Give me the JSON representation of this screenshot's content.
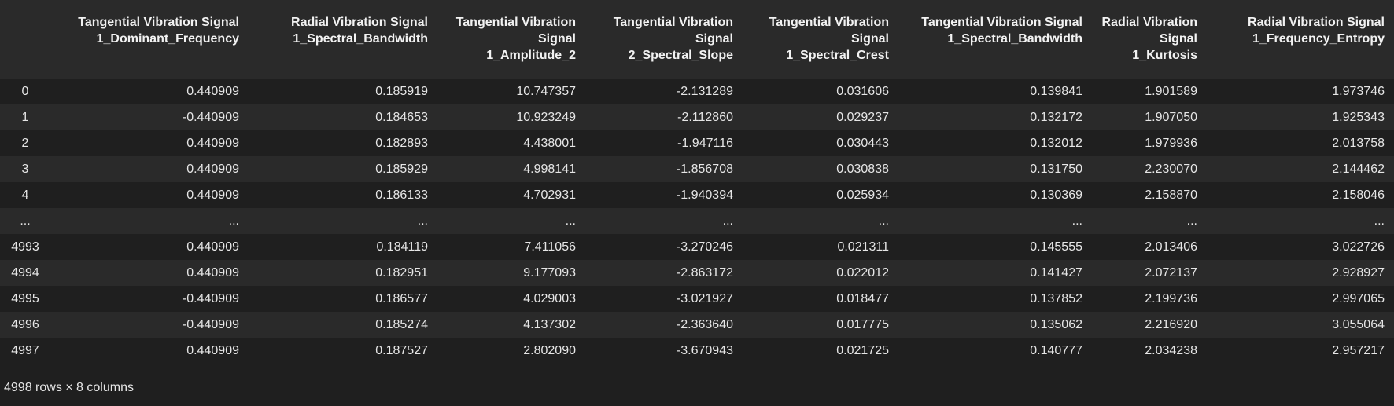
{
  "table": {
    "columns": [
      "Tangential Vibration Signal 1_Dominant_Frequency",
      "Radial Vibration Signal 1_Spectral_Bandwidth",
      "Tangential Vibration Signal 1_Amplitude_2",
      "Tangential Vibration Signal 2_Spectral_Slope",
      "Tangential Vibration Signal 1_Spectral_Crest",
      "Tangential Vibration Signal 1_Spectral_Bandwidth",
      "Radial Vibration Signal 1_Kurtosis",
      "Radial Vibration Signal 1_Frequency_Entropy"
    ],
    "rows": [
      {
        "index": "0",
        "cells": [
          "0.440909",
          "0.185919",
          "10.747357",
          "-2.131289",
          "0.031606",
          "0.139841",
          "1.901589",
          "1.973746"
        ]
      },
      {
        "index": "1",
        "cells": [
          "-0.440909",
          "0.184653",
          "10.923249",
          "-2.112860",
          "0.029237",
          "0.132172",
          "1.907050",
          "1.925343"
        ]
      },
      {
        "index": "2",
        "cells": [
          "0.440909",
          "0.182893",
          "4.438001",
          "-1.947116",
          "0.030443",
          "0.132012",
          "1.979936",
          "2.013758"
        ]
      },
      {
        "index": "3",
        "cells": [
          "0.440909",
          "0.185929",
          "4.998141",
          "-1.856708",
          "0.030838",
          "0.131750",
          "2.230070",
          "2.144462"
        ]
      },
      {
        "index": "4",
        "cells": [
          "0.440909",
          "0.186133",
          "4.702931",
          "-1.940394",
          "0.025934",
          "0.130369",
          "2.158870",
          "2.158046"
        ]
      },
      {
        "index": "...",
        "cells": [
          "...",
          "...",
          "...",
          "...",
          "...",
          "...",
          "...",
          "..."
        ]
      },
      {
        "index": "4993",
        "cells": [
          "0.440909",
          "0.184119",
          "7.411056",
          "-3.270246",
          "0.021311",
          "0.145555",
          "2.013406",
          "3.022726"
        ]
      },
      {
        "index": "4994",
        "cells": [
          "0.440909",
          "0.182951",
          "9.177093",
          "-2.863172",
          "0.022012",
          "0.141427",
          "2.072137",
          "2.928927"
        ]
      },
      {
        "index": "4995",
        "cells": [
          "-0.440909",
          "0.186577",
          "4.029003",
          "-3.021927",
          "0.018477",
          "0.137852",
          "2.199736",
          "2.997065"
        ]
      },
      {
        "index": "4996",
        "cells": [
          "-0.440909",
          "0.185274",
          "4.137302",
          "-2.363640",
          "0.017775",
          "0.135062",
          "2.216920",
          "3.055064"
        ]
      },
      {
        "index": "4997",
        "cells": [
          "0.440909",
          "0.187527",
          "2.802090",
          "-3.670943",
          "0.021725",
          "0.140777",
          "2.034238",
          "2.957217"
        ]
      }
    ]
  },
  "footer": {
    "shape": "4998 rows × 8 columns"
  },
  "colors": {
    "background": "#1f1f1f",
    "row_alt": "#2a2a2a",
    "text": "#e6e6e6"
  }
}
